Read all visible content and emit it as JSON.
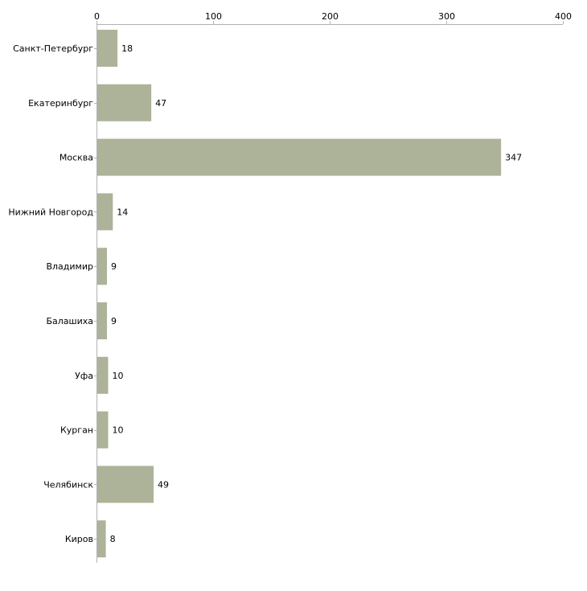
{
  "chart_data": {
    "type": "bar",
    "orientation": "horizontal",
    "title": "",
    "xlabel": "",
    "ylabel": "",
    "xlim": [
      0,
      400
    ],
    "x_ticks": [
      0,
      100,
      200,
      300,
      400
    ],
    "x_axis_position": "top",
    "grid": false,
    "categories": [
      "Санкт-Петербург",
      "Екатеринбург",
      "Москва",
      "Нижний Новгород",
      "Владимир",
      "Балашиха",
      "Уфа",
      "Курган",
      "Челябинск",
      "Киров"
    ],
    "values": [
      18,
      47,
      347,
      14,
      9,
      9,
      10,
      10,
      49,
      8
    ],
    "bar_color": "#adb399",
    "axis_color": "#b3b3b3"
  }
}
